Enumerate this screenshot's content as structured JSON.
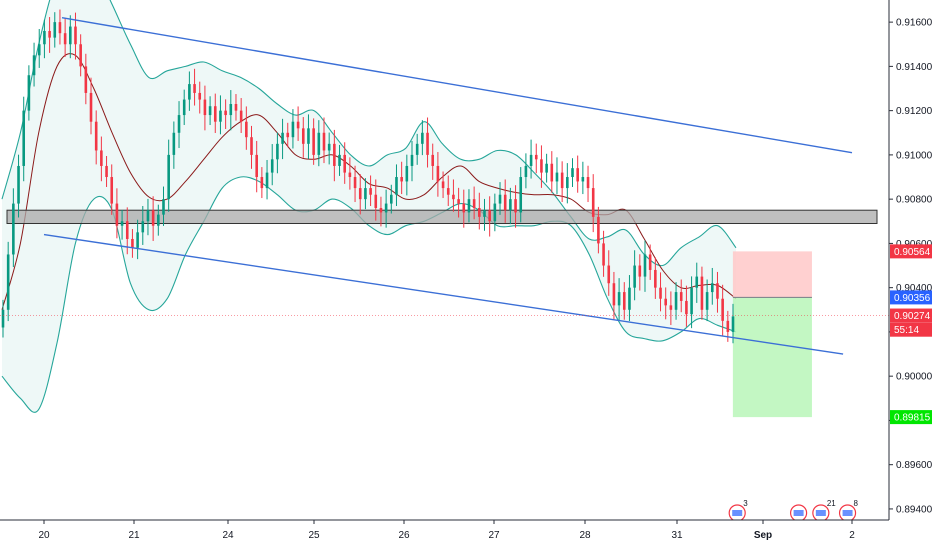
{
  "chart_data": {
    "type": "candlestick",
    "title": "",
    "xlabel": "",
    "ylabel": "",
    "ylim": [
      0.8935,
      0.917
    ],
    "y_ticks": [
      "0.91600",
      "0.91400",
      "0.91200",
      "0.91000",
      "0.90800",
      "0.90600",
      "0.90400",
      "0.90200",
      "0.90000",
      "0.89800",
      "0.89600",
      "0.89400"
    ],
    "x_ticks": [
      {
        "label": "20",
        "day": 0
      },
      {
        "label": "21",
        "day": 1
      },
      {
        "label": "24",
        "day": 2
      },
      {
        "label": "25",
        "day": 3
      },
      {
        "label": "26",
        "day": 4
      },
      {
        "label": "27",
        "day": 5
      },
      {
        "label": "28",
        "day": 6
      },
      {
        "label": "31",
        "day": 7
      },
      {
        "label": "Sep",
        "day": 8
      },
      {
        "label": "2",
        "day": 9
      }
    ],
    "price_labels": [
      {
        "text": "0.90564",
        "value": 0.90564,
        "color": "#f23645"
      },
      {
        "text": "0.90356",
        "value": 0.90356,
        "color": "#2962ff"
      },
      {
        "text": "0.90274",
        "value": 0.90274,
        "color": "#f23645"
      },
      {
        "text": "55:14",
        "value": 0.9021,
        "color": "#f23645"
      },
      {
        "text": "0.89815",
        "value": 0.89815,
        "color": "#00e600"
      }
    ],
    "closes": [
      0.903,
      0.9055,
      0.9078,
      0.9095,
      0.912,
      0.9136,
      0.9145,
      0.915,
      0.9156,
      0.9153,
      0.916,
      0.9155,
      0.915,
      0.9158,
      0.915,
      0.914,
      0.9128,
      0.9115,
      0.9102,
      0.9095,
      0.909,
      0.9078,
      0.9068,
      0.907,
      0.9062,
      0.9058,
      0.9065,
      0.907,
      0.9075,
      0.9068,
      0.9073,
      0.908,
      0.91,
      0.911,
      0.9118,
      0.9125,
      0.9132,
      0.9128,
      0.9125,
      0.9118,
      0.9122,
      0.9115,
      0.912,
      0.9118,
      0.9123,
      0.912,
      0.9115,
      0.9108,
      0.91,
      0.909,
      0.9085,
      0.9092,
      0.9098,
      0.9105,
      0.911,
      0.9108,
      0.9115,
      0.9112,
      0.9105,
      0.9112,
      0.91,
      0.911,
      0.9102,
      0.9105,
      0.9095,
      0.91,
      0.9092,
      0.909,
      0.9085,
      0.908,
      0.9085,
      0.9082,
      0.9076,
      0.9074,
      0.9078,
      0.9082,
      0.909,
      0.9088,
      0.9095,
      0.91,
      0.9105,
      0.911,
      0.91,
      0.9095,
      0.9088,
      0.9085,
      0.9082,
      0.908,
      0.9078,
      0.9074,
      0.908,
      0.9076,
      0.9072,
      0.9075,
      0.907,
      0.9078,
      0.9082,
      0.9075,
      0.908,
      0.9074,
      0.909,
      0.9095,
      0.91,
      0.9098,
      0.9092,
      0.9096,
      0.9088,
      0.9092,
      0.9085,
      0.909,
      0.9094,
      0.9088,
      0.909,
      0.9085,
      0.9072,
      0.906,
      0.905,
      0.9042,
      0.9032,
      0.9038,
      0.903,
      0.904,
      0.905,
      0.9045,
      0.9055,
      0.9048,
      0.904,
      0.9035,
      0.9032,
      0.903,
      0.9038,
      0.9034,
      0.9028,
      0.904,
      0.9045,
      0.903,
      0.9038,
      0.9042,
      0.9035,
      0.9025,
      0.902,
      0.9027
    ],
    "bollinger_upper": [
      0.908,
      0.911,
      0.915,
      0.918,
      0.919,
      0.9185,
      0.9168,
      0.915,
      0.9135,
      0.9138,
      0.914,
      0.9142,
      0.9138,
      0.9135,
      0.913,
      0.9123,
      0.9118,
      0.912,
      0.911,
      0.91,
      0.9095,
      0.91,
      0.9103,
      0.9115,
      0.9105,
      0.9098,
      0.9098,
      0.9102,
      0.91,
      0.9092,
      0.9083,
      0.9072,
      0.9062,
      0.9063,
      0.9066,
      0.9055,
      0.905,
      0.9058,
      0.9063,
      0.9068,
      0.9058
    ],
    "bollinger_middle": [
      0.903,
      0.906,
      0.911,
      0.914,
      0.9145,
      0.913,
      0.911,
      0.9092,
      0.9081,
      0.908,
      0.9088,
      0.9098,
      0.9108,
      0.9115,
      0.9118,
      0.911,
      0.91,
      0.9098,
      0.91,
      0.9095,
      0.9087,
      0.9085,
      0.908,
      0.9082,
      0.909,
      0.9095,
      0.9088,
      0.9085,
      0.9083,
      0.9082,
      0.9082,
      0.908,
      0.9074,
      0.9073,
      0.9075,
      0.9062,
      0.9048,
      0.904,
      0.9041,
      0.9041,
      0.9035
    ],
    "bollinger_lower": [
      0.9,
      0.899,
      0.8985,
      0.9015,
      0.906,
      0.908,
      0.9075,
      0.9042,
      0.903,
      0.9035,
      0.9055,
      0.907,
      0.9085,
      0.909,
      0.9088,
      0.9082,
      0.9075,
      0.9075,
      0.908,
      0.9076,
      0.9068,
      0.9064,
      0.9068,
      0.907,
      0.9074,
      0.9078,
      0.9075,
      0.9068,
      0.9068,
      0.9068,
      0.907,
      0.9068,
      0.9055,
      0.9035,
      0.902,
      0.9017,
      0.9016,
      0.902,
      0.9026,
      0.9023,
      0.902
    ],
    "channel_upper": {
      "x": [
        0.2,
        9.0
      ],
      "y": [
        0.9162,
        0.9101
      ]
    },
    "channel_lower": {
      "x": [
        0.0,
        8.9
      ],
      "y": [
        0.9064,
        0.901
      ]
    },
    "support_zone": [
      0.9069,
      0.9075
    ],
    "current_price": 0.90274,
    "short_position": {
      "entry": 0.90356,
      "stop": 0.90564,
      "target": 0.89815,
      "x_start": 7.65,
      "x_end": 8.55
    },
    "event_badges": [
      {
        "count": "3",
        "x": 7.7
      },
      {
        "count": "",
        "x": 8.4
      },
      {
        "count": "21",
        "x": 8.65
      },
      {
        "count": "8",
        "x": 8.95
      }
    ]
  },
  "colors": {
    "up": "#089981",
    "down": "#f23645",
    "channel": "#3b6fd6",
    "band": "#26a69a",
    "middle": "#8b1a1a",
    "zone": "#a9a9a9",
    "profit": "#b9f6b9",
    "loss": "#ffc8c8"
  }
}
